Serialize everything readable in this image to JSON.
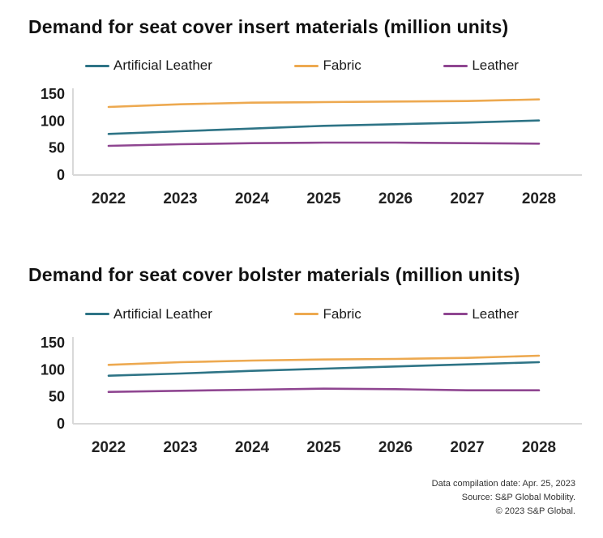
{
  "chart_data": [
    {
      "type": "line",
      "title": "Demand for seat cover insert materials (million units)",
      "categories": [
        "2022",
        "2023",
        "2024",
        "2025",
        "2026",
        "2027",
        "2028"
      ],
      "series": [
        {
          "name": "Artificial Leather",
          "color": "#2e7486",
          "values": [
            76,
            81,
            86,
            91,
            94,
            97,
            101
          ]
        },
        {
          "name": "Fabric",
          "color": "#eda950",
          "values": [
            126,
            131,
            134,
            135,
            136,
            137,
            140
          ]
        },
        {
          "name": "Leather",
          "color": "#8f4691",
          "values": [
            54,
            57,
            59,
            60,
            60,
            59,
            58
          ]
        }
      ],
      "xlabel": "",
      "ylabel": "",
      "ylim": [
        0,
        150
      ],
      "yticks": [
        0,
        50,
        100,
        150
      ],
      "grid": false,
      "legend_position": "top"
    },
    {
      "type": "line",
      "title": "Demand for seat cover bolster materials (million units)",
      "categories": [
        "2022",
        "2023",
        "2024",
        "2025",
        "2026",
        "2027",
        "2028"
      ],
      "series": [
        {
          "name": "Artificial Leather",
          "color": "#2e7486",
          "values": [
            89,
            93,
            98,
            102,
            106,
            110,
            114
          ]
        },
        {
          "name": "Fabric",
          "color": "#eda950",
          "values": [
            109,
            114,
            117,
            119,
            120,
            122,
            126
          ]
        },
        {
          "name": "Leather",
          "color": "#8f4691",
          "values": [
            59,
            61,
            63,
            65,
            64,
            62,
            62
          ]
        }
      ],
      "xlabel": "",
      "ylabel": "",
      "ylim": [
        0,
        150
      ],
      "yticks": [
        0,
        50,
        100,
        150
      ],
      "grid": false,
      "legend_position": "top"
    }
  ],
  "styles": {
    "axis_color": "#d9d9d9"
  },
  "footer": {
    "lines": [
      "Data compilation date: Apr. 25, 2023",
      "Source: S&P Global Mobility.",
      "© 2023 S&P Global."
    ]
  }
}
